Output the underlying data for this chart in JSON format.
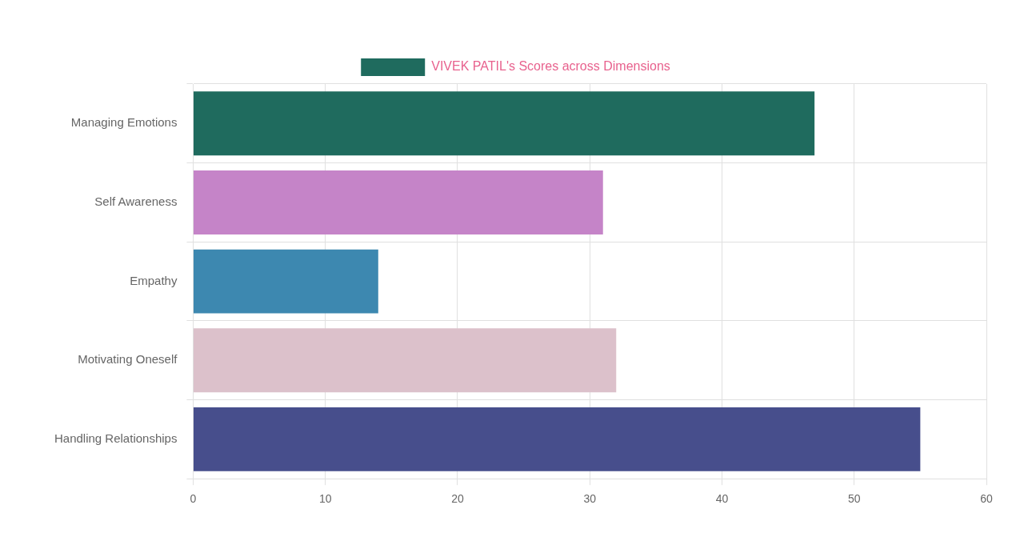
{
  "chart_data": {
    "type": "bar",
    "orientation": "horizontal",
    "categories": [
      "Managing Emotions",
      "Self Awareness",
      "Empathy",
      "Motivating Oneself",
      "Handling Relationships"
    ],
    "series": [
      {
        "name": "VIVEK PATIL's Scores across Dimensions",
        "color": "#1f6b5e",
        "colors": [
          "#1f6b5e",
          "#c584c8",
          "#3d88b0",
          "#dcc1cb",
          "#474e8c"
        ],
        "values": [
          47,
          31,
          14,
          32,
          55
        ]
      }
    ],
    "xlim": [
      0,
      60
    ],
    "xticks": [
      0,
      10,
      20,
      30,
      40,
      50,
      60
    ],
    "grid": true,
    "legend": "top"
  }
}
